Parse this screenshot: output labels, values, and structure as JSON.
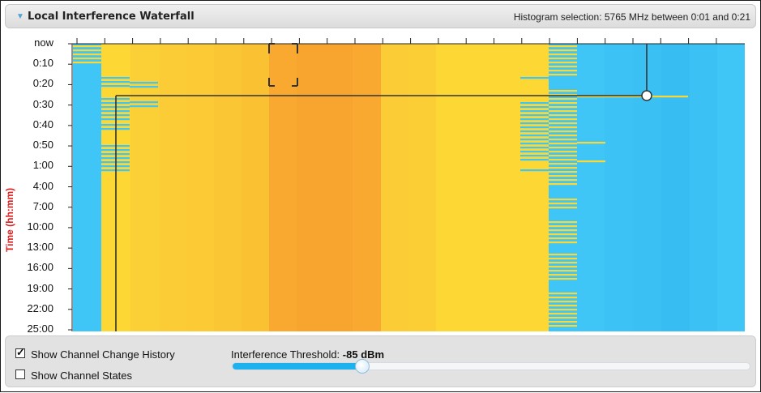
{
  "panel": {
    "title": "Local Interference Waterfall",
    "selection_text": "Histogram selection: 5765 MHz between 0:01 and 0:21"
  },
  "yaxis": {
    "title": "Time (hh:mm)",
    "labels": [
      "now",
      "0:10",
      "0:20",
      "0:30",
      "0:40",
      "0:50",
      "1:00",
      "4:00",
      "7:00",
      "10:00",
      "13:00",
      "16:00",
      "19:00",
      "22:00",
      "25:00"
    ]
  },
  "colors": {
    "low": "#3fc6f6",
    "medium": "#fdd835",
    "high": "#f9a930",
    "cursor": "#333333"
  },
  "options": {
    "show_channel_change_history": {
      "label": "Show Channel Change History",
      "checked": true
    },
    "show_channel_states": {
      "label": "Show Channel States",
      "checked": false
    }
  },
  "threshold": {
    "label": "Interference Threshold:",
    "value": "-85 dBm",
    "fraction": 0.25
  }
}
